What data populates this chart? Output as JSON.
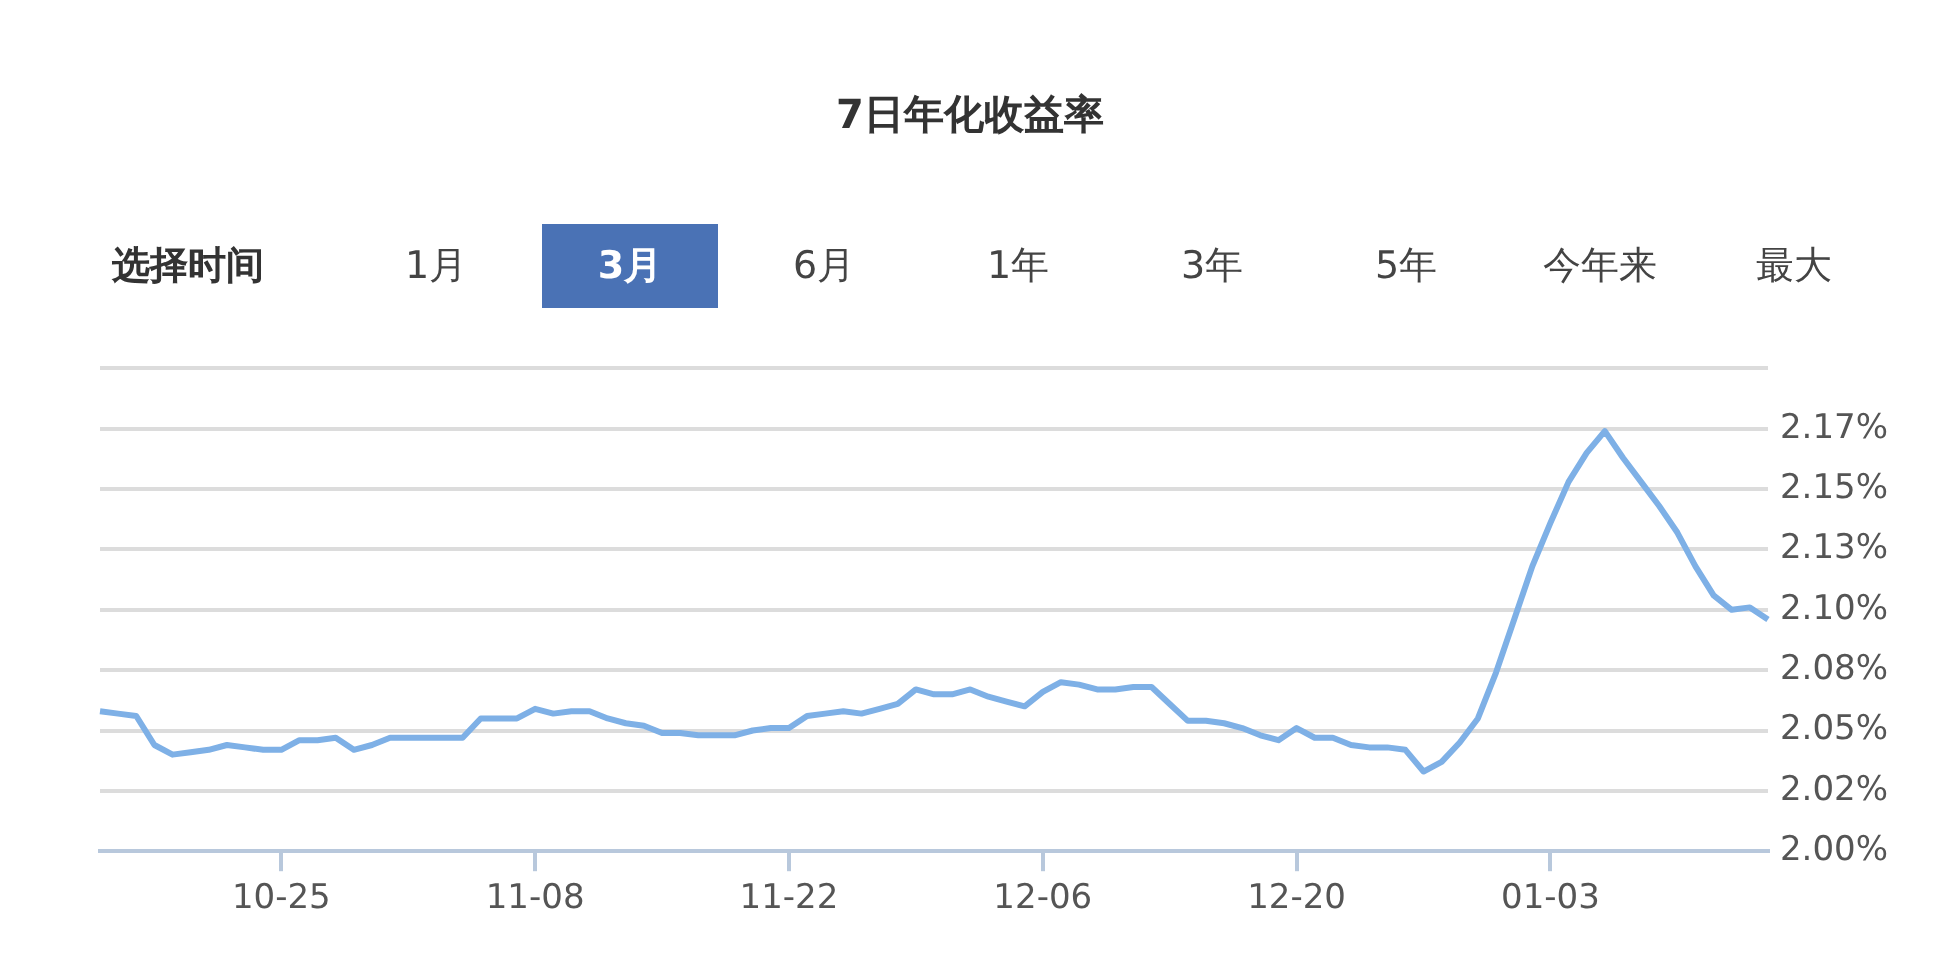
{
  "chart_data": {
    "type": "line",
    "title": "7日年化收益率",
    "annotations": [
      "选择时间",
      "1月",
      "3月",
      "6月",
      "1年",
      "3年",
      "5年",
      "今年来",
      "最大"
    ],
    "categories": [
      null,
      null,
      null,
      null,
      null,
      null,
      null,
      null,
      null,
      null,
      "10-25",
      null,
      null,
      null,
      null,
      null,
      null,
      null,
      null,
      null,
      null,
      null,
      null,
      null,
      "11-08",
      null,
      null,
      null,
      null,
      null,
      null,
      null,
      null,
      null,
      null,
      null,
      null,
      null,
      "11-22",
      null,
      null,
      null,
      null,
      null,
      null,
      null,
      null,
      null,
      null,
      null,
      null,
      null,
      "12-06",
      null,
      null,
      null,
      null,
      null,
      null,
      null,
      null,
      null,
      null,
      null,
      null,
      null,
      "12-20",
      null,
      null,
      null,
      null,
      null,
      null,
      null,
      null,
      null,
      null,
      null,
      null,
      null,
      "01-03",
      null,
      null,
      null,
      null,
      null,
      null,
      null,
      null,
      null,
      null,
      null,
      null
    ],
    "series": [
      {
        "color": "#7eb0e6",
        "values": [
          2.058,
          2.057,
          2.056,
          2.044,
          2.04,
          2.041,
          2.042,
          2.044,
          2.043,
          2.042,
          2.042,
          2.046,
          2.046,
          2.047,
          2.042,
          2.044,
          2.047,
          2.047,
          2.047,
          2.047,
          2.047,
          2.055,
          2.055,
          2.055,
          2.059,
          2.057,
          2.058,
          2.058,
          2.055,
          2.053,
          2.052,
          2.049,
          2.049,
          2.048,
          2.048,
          2.048,
          2.05,
          2.051,
          2.051,
          2.056,
          2.057,
          2.058,
          2.057,
          2.059,
          2.061,
          2.067,
          2.065,
          2.065,
          2.067,
          2.064,
          2.062,
          2.06,
          2.066,
          2.07,
          2.069,
          2.067,
          2.067,
          2.068,
          2.068,
          2.061,
          2.054,
          2.054,
          2.053,
          2.051,
          2.048,
          2.046,
          2.051,
          2.047,
          2.047,
          2.044,
          2.043,
          2.043,
          2.042,
          2.033,
          2.037,
          2.045,
          2.055,
          2.074,
          2.096,
          2.118,
          2.136,
          2.153,
          2.165,
          2.174,
          2.163,
          2.153,
          2.143,
          2.132,
          2.118,
          2.106,
          2.1,
          2.101,
          2.096
        ]
      }
    ],
    "ylim": [
      2.0,
      2.2
    ],
    "yticks": [
      {
        "value": 2.0,
        "label": "2.00%"
      },
      {
        "value": 2.025,
        "label": "2.02%"
      },
      {
        "value": 2.05,
        "label": "2.05%"
      },
      {
        "value": 2.075,
        "label": "2.08%"
      },
      {
        "value": 2.1,
        "label": "2.10%"
      },
      {
        "value": 2.125,
        "label": "2.13%"
      },
      {
        "value": 2.15,
        "label": "2.15%"
      },
      {
        "value": 2.175,
        "label": "2.17%"
      },
      {
        "value": 2.2,
        "label": null
      }
    ],
    "grid": "y",
    "legend": false,
    "marker": "none"
  }
}
